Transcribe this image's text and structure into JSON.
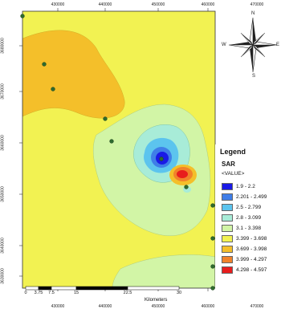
{
  "axes": {
    "top_ticks": [
      "430000",
      "440000",
      "450000",
      "460000",
      "470000"
    ],
    "bottom_ticks": [
      "430000",
      "440000",
      "450000",
      "460000",
      "470000"
    ],
    "left_ticks": [
      "3680000",
      "3670000",
      "3660000",
      "3650000",
      "3640000",
      "3630000"
    ]
  },
  "compass": {
    "north": "N",
    "south": "S",
    "west": "W",
    "east": "E"
  },
  "legend": {
    "title": "Legend",
    "variable": "SAR",
    "value_label": "<VALUE>",
    "classes": [
      {
        "label": "1.9 - 2.2",
        "color": "#1a1ae6"
      },
      {
        "label": "2.201 - 2.499",
        "color": "#3f7ee8"
      },
      {
        "label": "2.5 - 2.799",
        "color": "#5cc4ee"
      },
      {
        "label": "2.8 - 3.099",
        "color": "#a8ecd8"
      },
      {
        "label": "3.1 - 3.398",
        "color": "#d2f5a6"
      },
      {
        "label": "3.399 - 3.698",
        "color": "#f2f252"
      },
      {
        "label": "3.699 - 3.998",
        "color": "#f4bf2a"
      },
      {
        "label": "3.999 - 4.297",
        "color": "#f1822a"
      },
      {
        "label": "4.298 - 4.597",
        "color": "#e81d1d"
      }
    ]
  },
  "scale_bar": {
    "ticks": [
      "0",
      "3.75",
      "7.5",
      "15",
      "22.5",
      "30"
    ],
    "unit": "Kilometers"
  }
}
